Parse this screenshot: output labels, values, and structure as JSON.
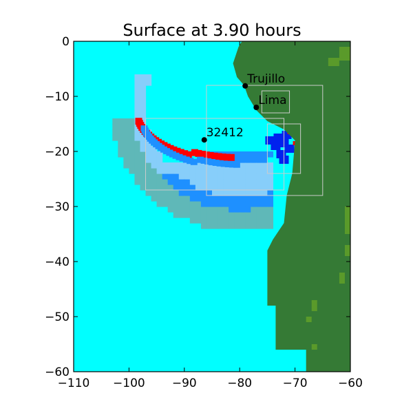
{
  "chart_data": {
    "type": "heatmap",
    "title": "Surface at 3.90 hours",
    "xlim": [
      -110,
      -60
    ],
    "ylim": [
      -60,
      0
    ],
    "xticks": [
      -110,
      -100,
      -90,
      -80,
      -70,
      -60
    ],
    "yticks": [
      0,
      -10,
      -20,
      -30,
      -40,
      -50,
      -60
    ],
    "xtick_labels": [
      "−110",
      "−100",
      "−90",
      "−80",
      "−70",
      "−60"
    ],
    "ytick_labels": [
      "0",
      "−10",
      "−20",
      "−30",
      "−40",
      "−50",
      "−60"
    ],
    "grid": false,
    "colors": {
      "ocean": "#00ffff",
      "land": "#357a35",
      "highland": "#5a9a2a",
      "crest": "#ff0000",
      "trough_deep": "#0022ee",
      "trough_mid": "#1e90ff",
      "trough_light": "#87cefa",
      "wake": "#5fb8b8",
      "amr_box": "#cccccc"
    },
    "markers": [
      {
        "label": "Trujillo",
        "x": -79.0,
        "y": -8.1
      },
      {
        "label": "Lima",
        "x": -77.0,
        "y": -12.0
      },
      {
        "label": "32412",
        "x": -86.4,
        "y": -17.9
      }
    ]
  }
}
